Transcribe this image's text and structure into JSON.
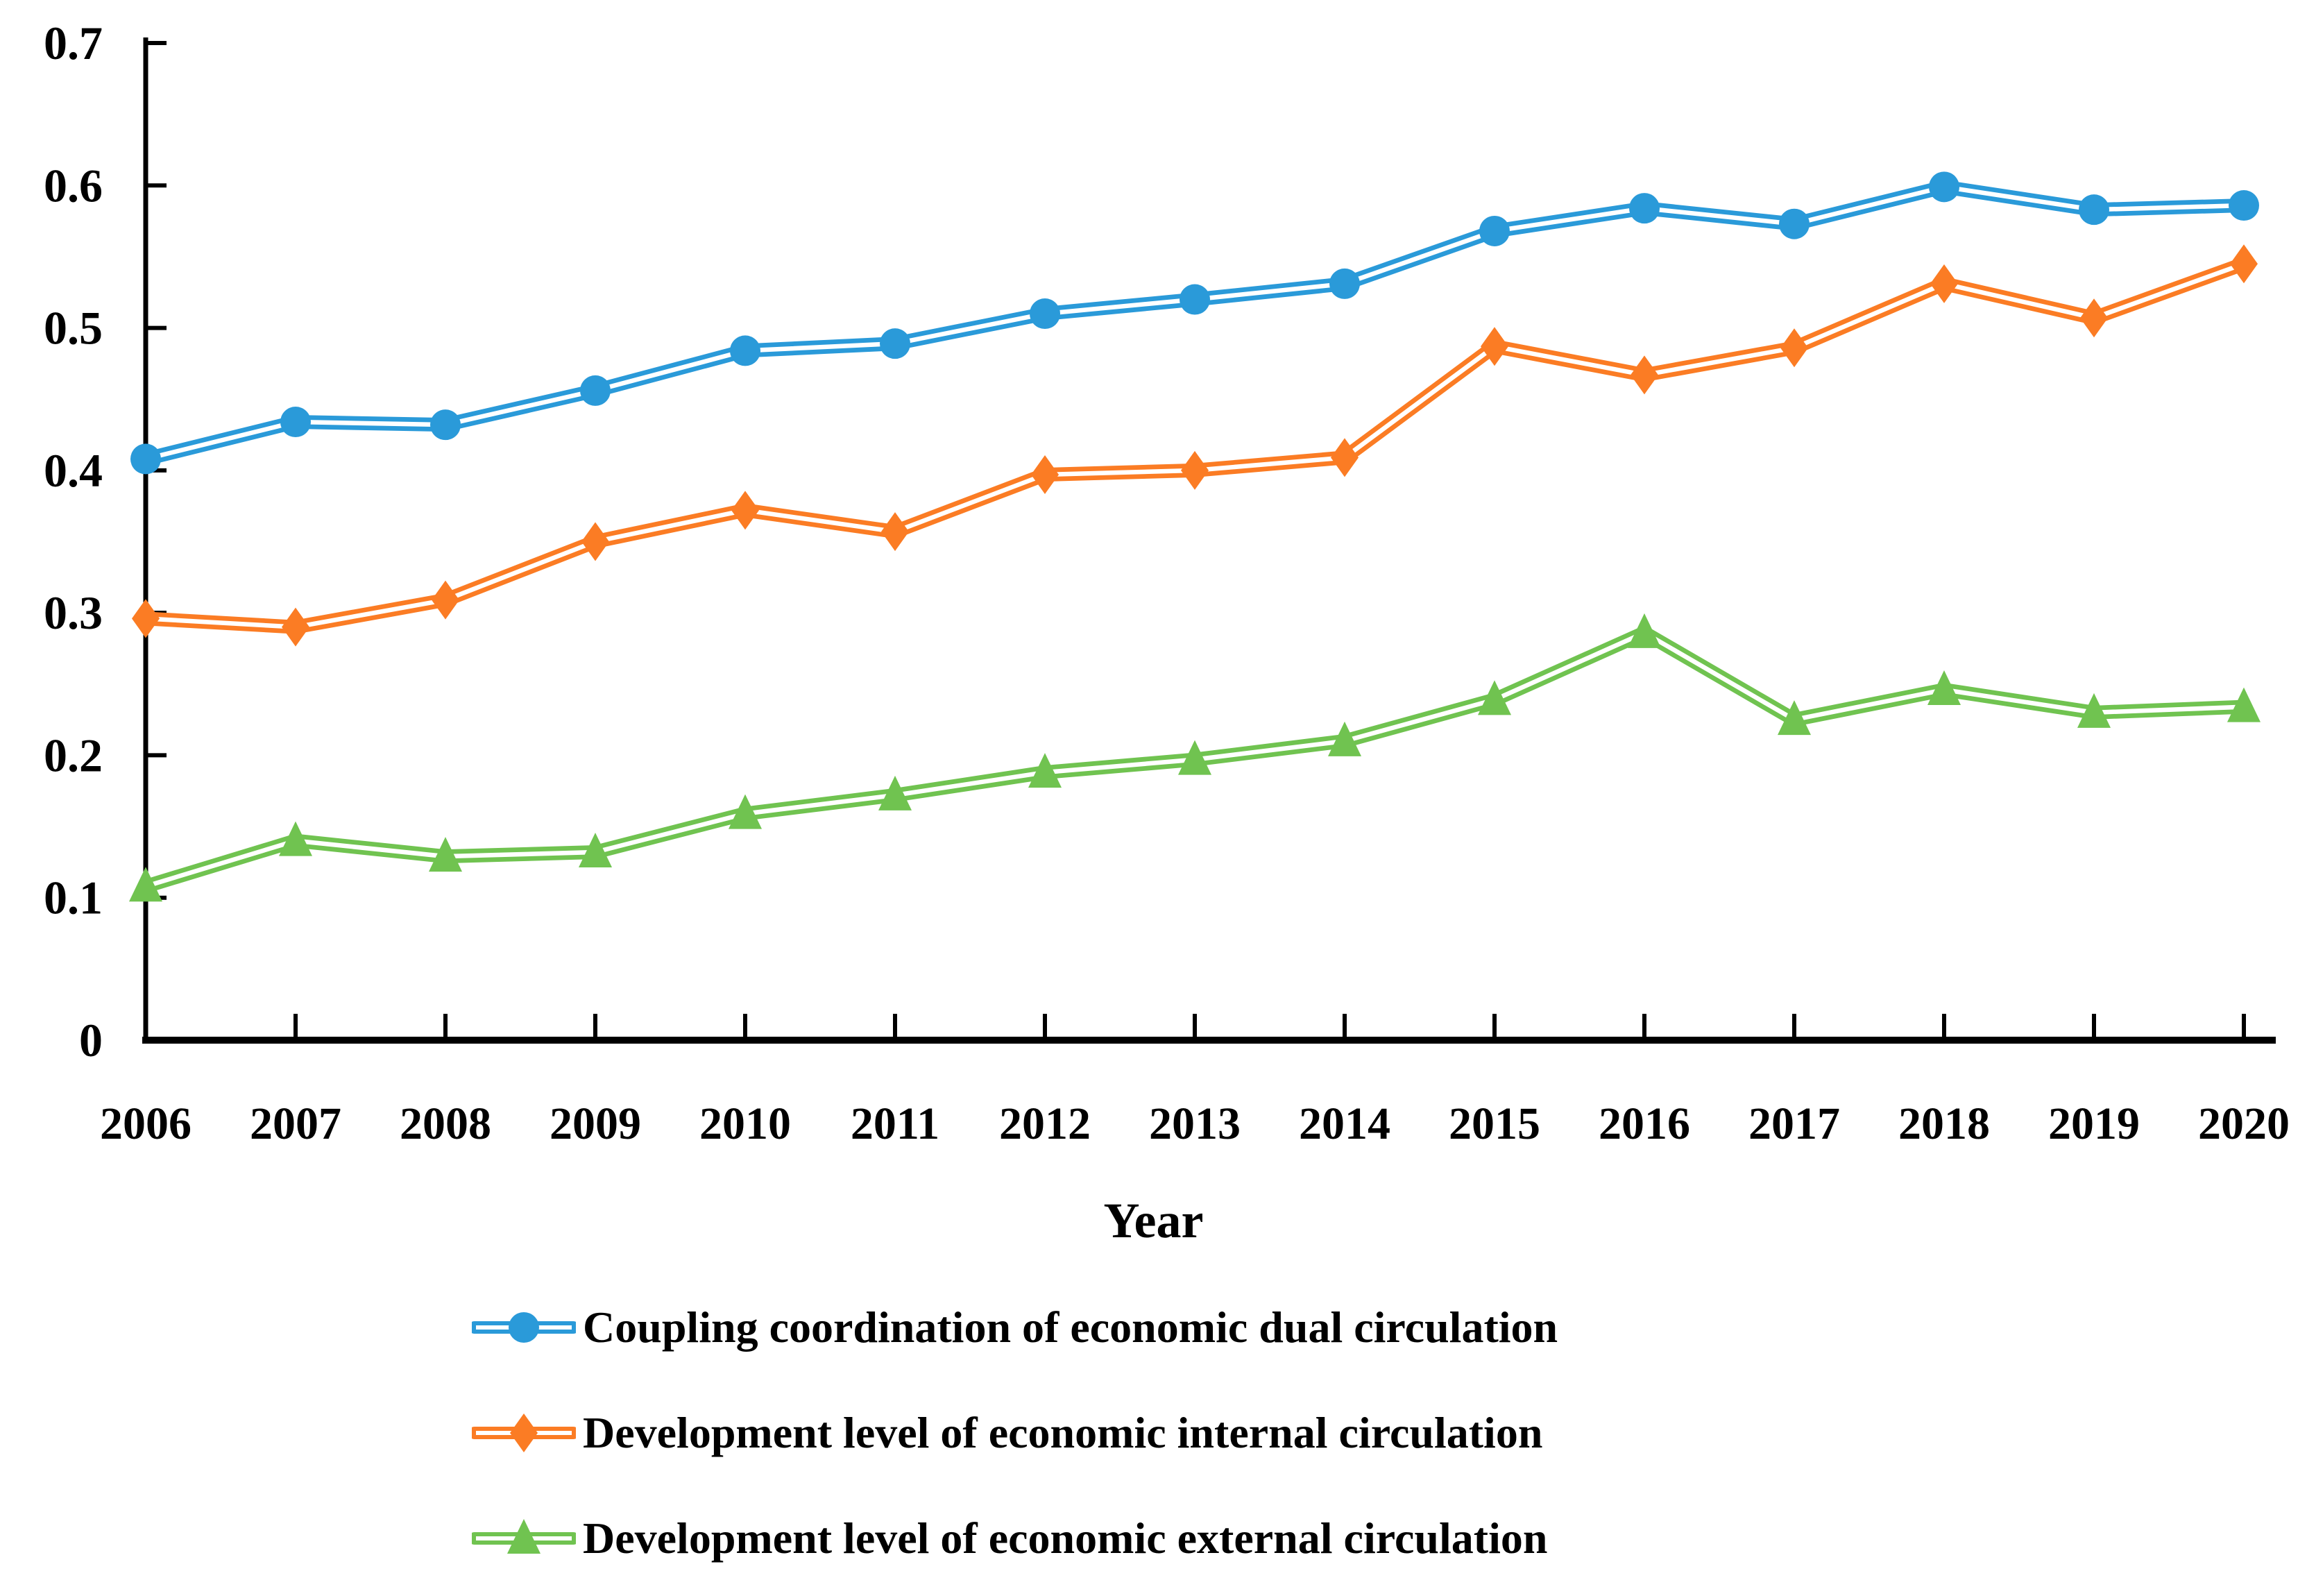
{
  "chart_data": {
    "type": "line",
    "title": "",
    "xlabel": "Year",
    "ylabel": "",
    "x": [
      "2006",
      "2007",
      "2008",
      "2009",
      "2010",
      "2011",
      "2012",
      "2013",
      "2014",
      "2015",
      "2016",
      "2017",
      "2018",
      "2019",
      "2020"
    ],
    "ylim": [
      0,
      0.7
    ],
    "yticks": [
      "0",
      "0.1",
      "0.2",
      "0.3",
      "0.4",
      "0.5",
      "0.6",
      "0.7"
    ],
    "grid": false,
    "legend_position": "bottom",
    "axis_color": "#000000",
    "series": [
      {
        "name": "Coupling coordination of economic dual circulation",
        "marker": "circle",
        "color": "#2A9AD9",
        "values": [
          0.408,
          0.434,
          0.432,
          0.456,
          0.484,
          0.489,
          0.51,
          0.52,
          0.531,
          0.568,
          0.584,
          0.573,
          0.599,
          0.583,
          0.586
        ]
      },
      {
        "name": "Development level of economic internal circulation",
        "marker": "diamond",
        "color": "#FB7C24",
        "values": [
          0.296,
          0.29,
          0.309,
          0.35,
          0.372,
          0.357,
          0.397,
          0.4,
          0.409,
          0.487,
          0.467,
          0.486,
          0.531,
          0.507,
          0.545
        ]
      },
      {
        "name": "Development level of economic external circulation",
        "marker": "triangle",
        "color": "#70C350",
        "values": [
          0.108,
          0.14,
          0.129,
          0.132,
          0.159,
          0.172,
          0.188,
          0.197,
          0.21,
          0.239,
          0.286,
          0.225,
          0.246,
          0.23,
          0.234
        ]
      }
    ]
  }
}
